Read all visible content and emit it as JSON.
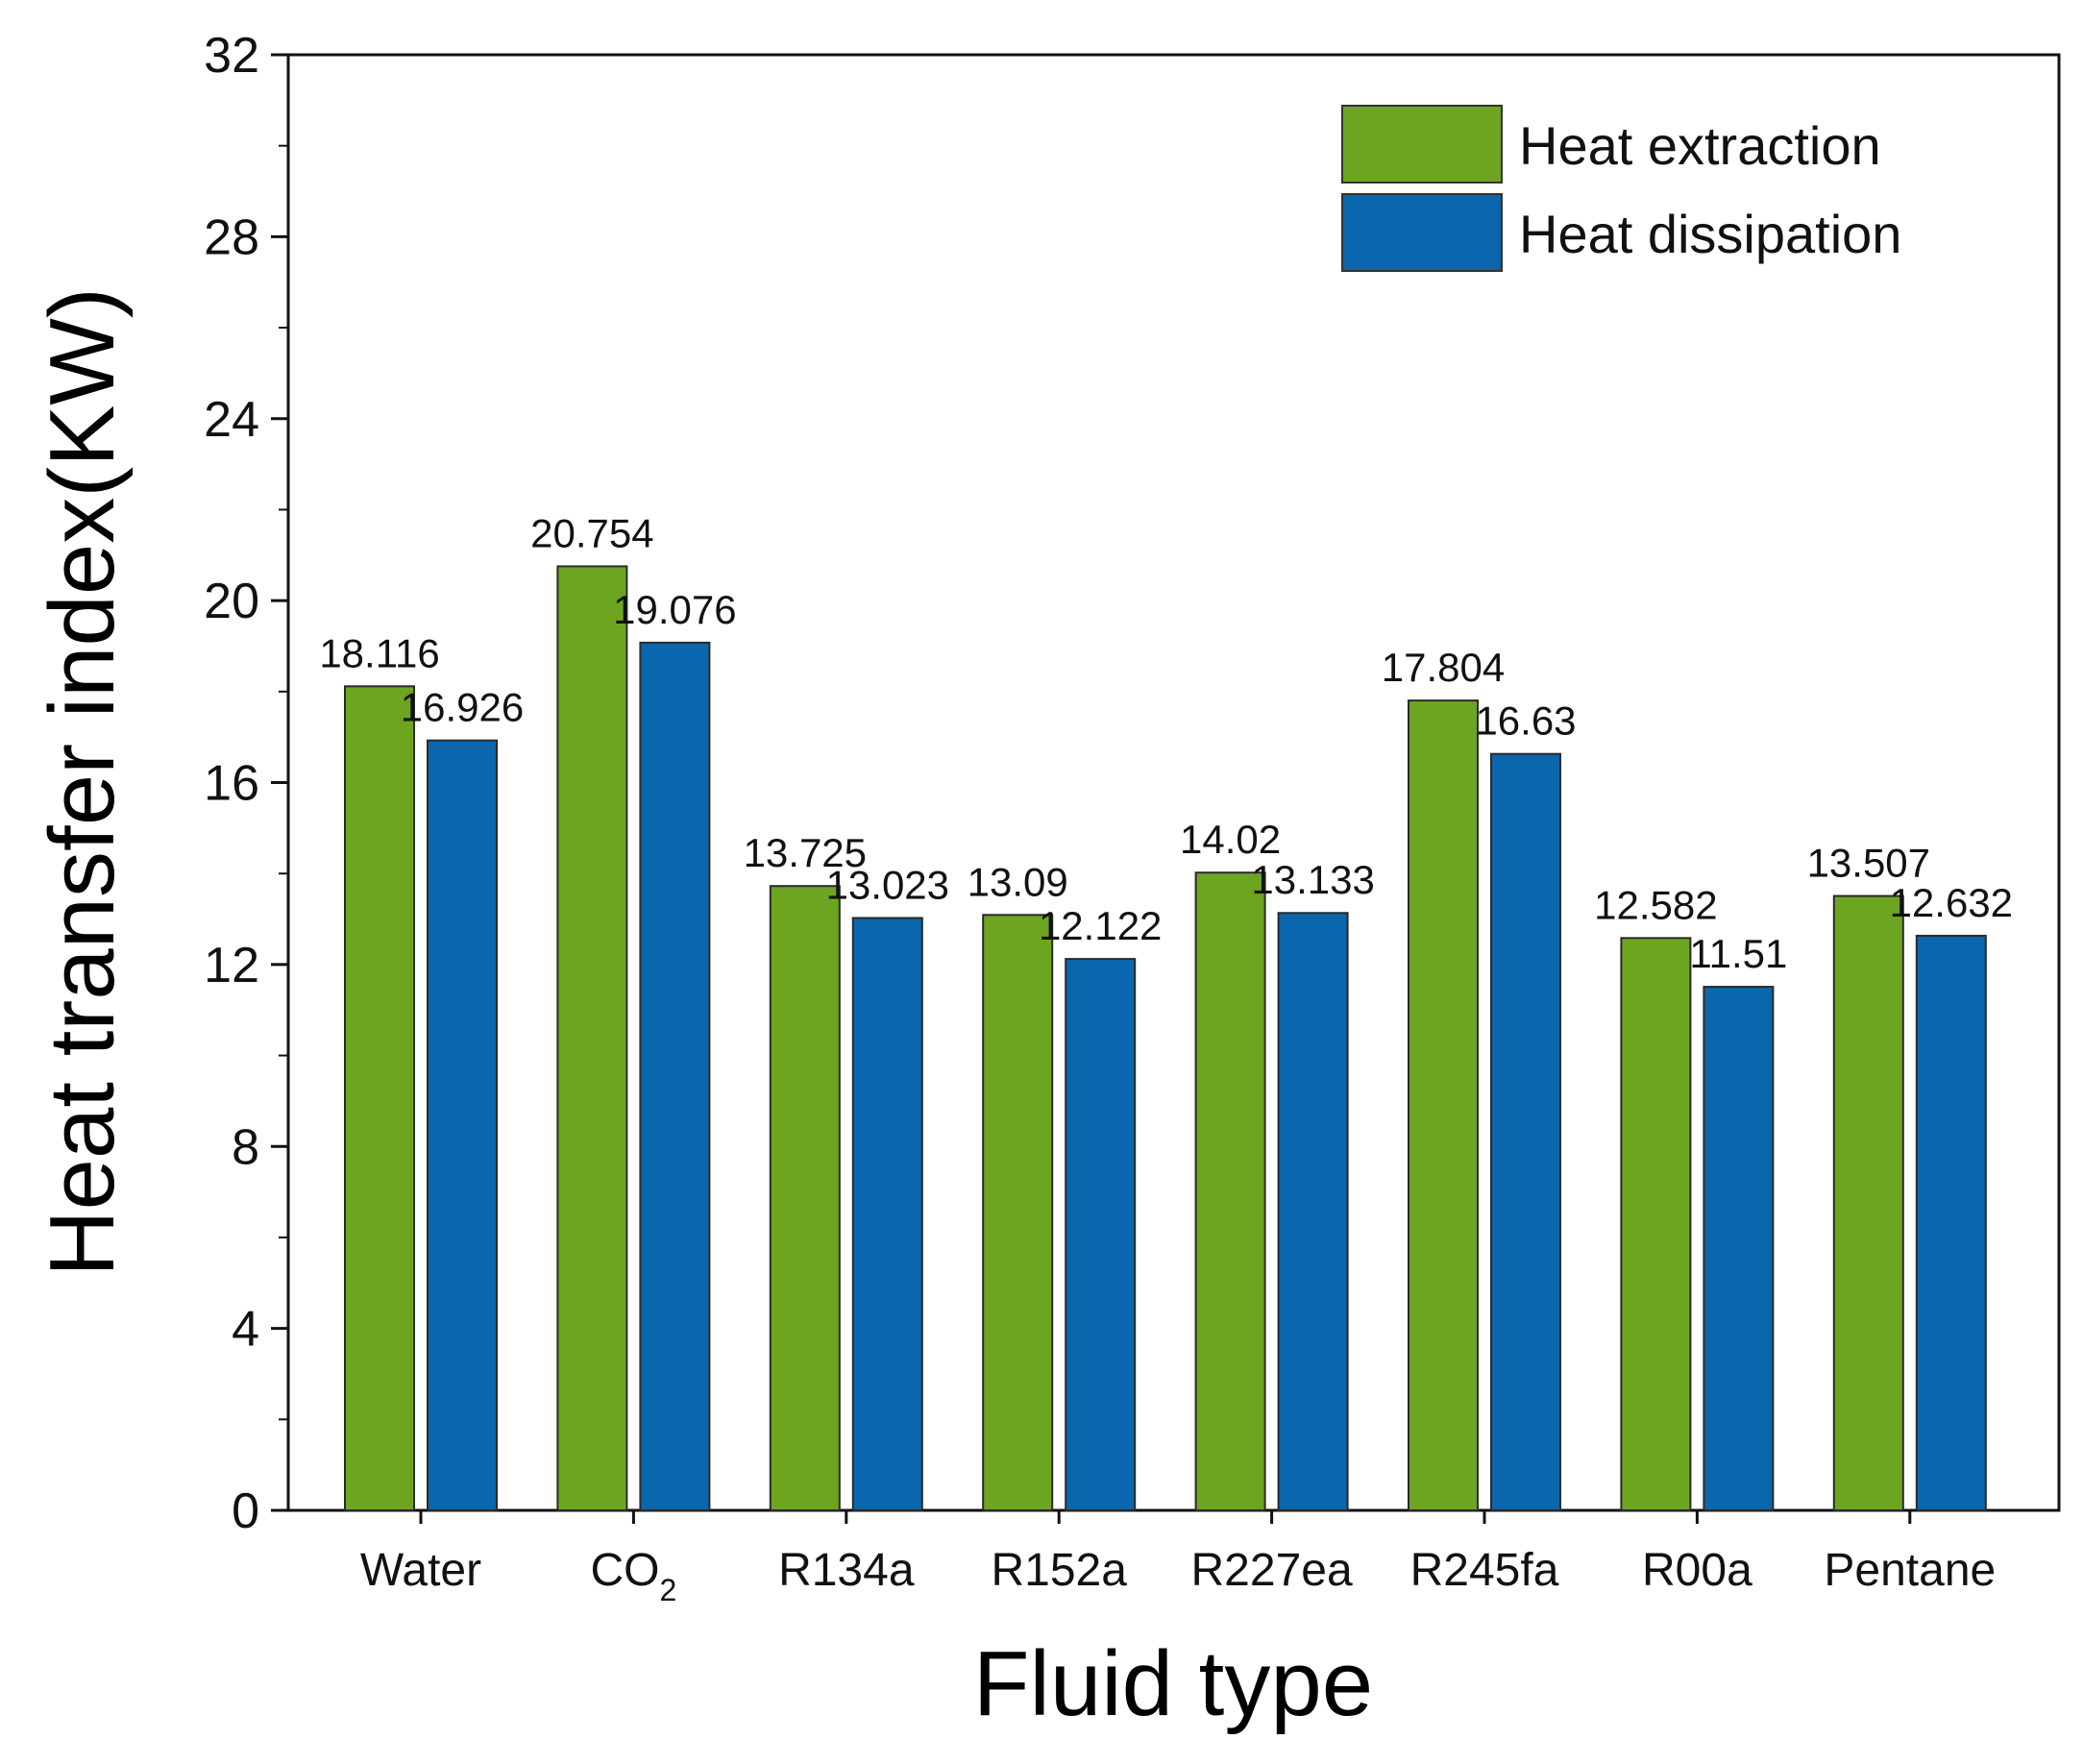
{
  "chart_data": {
    "type": "bar",
    "title": "",
    "xlabel": "Fluid type",
    "ylabel": "Heat transfer index(KW)",
    "ylim": [
      0,
      32
    ],
    "yticks": [
      0,
      4,
      8,
      12,
      16,
      20,
      24,
      28,
      32
    ],
    "grid": false,
    "legend_position": "top-right",
    "categories": [
      {
        "main": "Water",
        "sub": ""
      },
      {
        "main": "CO",
        "sub": "2"
      },
      {
        "main": "R134a",
        "sub": ""
      },
      {
        "main": "R152a",
        "sub": ""
      },
      {
        "main": "R227ea",
        "sub": ""
      },
      {
        "main": "R245fa",
        "sub": ""
      },
      {
        "main": "R00a",
        "sub": ""
      },
      {
        "main": "Pentane",
        "sub": ""
      }
    ],
    "series": [
      {
        "name": "Heat extraction",
        "color": "#6ea520",
        "values": [
          18.116,
          20.754,
          13.725,
          13.09,
          14.02,
          17.804,
          12.582,
          13.507
        ],
        "labels": [
          "18.116",
          "20.754",
          "13.725",
          "13.09",
          "14.02",
          "17.804",
          "12.582",
          "13.507"
        ]
      },
      {
        "name": "Heat dissipation",
        "color": "#0a66ad",
        "values": [
          16.926,
          19.076,
          13.023,
          12.122,
          13.133,
          16.63,
          11.51,
          12.632
        ],
        "labels": [
          "16.926",
          "19.076",
          "13.023",
          "12.122",
          "13.133",
          "16.63",
          "11.51",
          "12.632"
        ]
      }
    ]
  }
}
